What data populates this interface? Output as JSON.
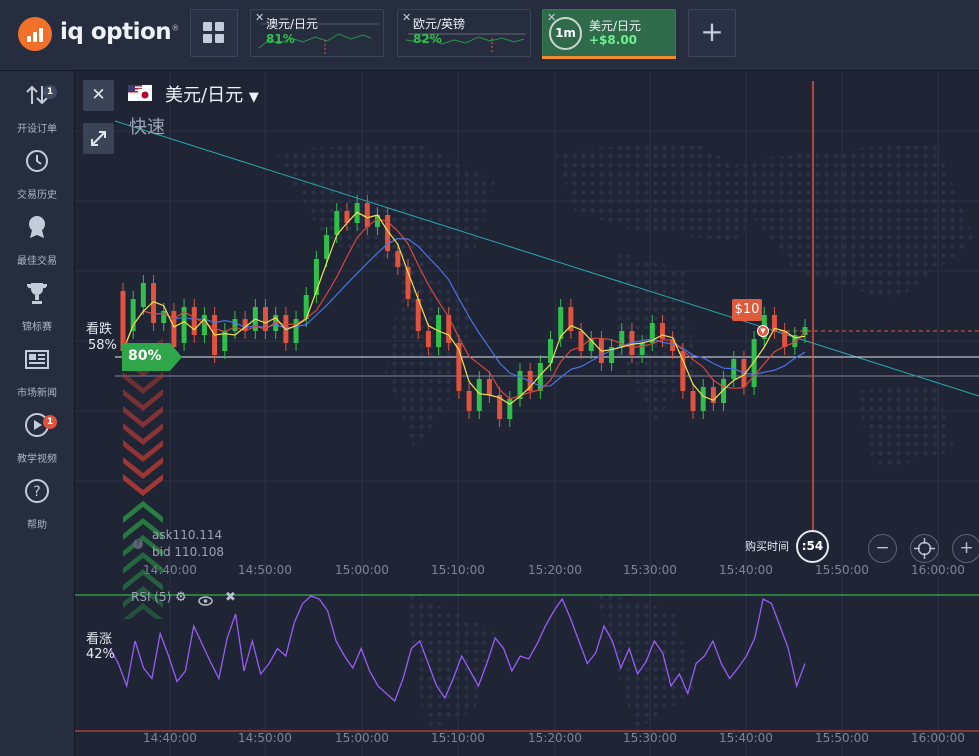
{
  "brand": {
    "name": "iq option",
    "trademark": "®",
    "color": "#f1702a"
  },
  "tabs": [
    {
      "name": "澳元/日元",
      "percent": "81%"
    },
    {
      "name": "欧元/英镑",
      "percent": "82%"
    },
    {
      "name": "美元/日元",
      "profit": "+$8.00",
      "timer": "1m",
      "active": true
    }
  ],
  "sidebar": {
    "items": [
      {
        "label": "开设订单",
        "icon": "arrows-updown-icon",
        "badge": "1"
      },
      {
        "label": "交易历史",
        "icon": "history-clock-icon"
      },
      {
        "label": "最佳交易",
        "icon": "medal-icon"
      },
      {
        "label": "锦标赛",
        "icon": "trophy-icon"
      },
      {
        "label": "市场新闻",
        "icon": "newspaper-icon"
      },
      {
        "label": "教学视频",
        "icon": "play-video-icon",
        "badge": "1"
      },
      {
        "label": "帮助",
        "icon": "help-question-icon"
      }
    ]
  },
  "asset": {
    "pair": "美元/日元",
    "mode": "快速"
  },
  "sentiment": {
    "down_label": "看跌",
    "down_pct": "58%",
    "up_label": "看涨",
    "up_pct": "42%"
  },
  "payout": "80%",
  "trade": {
    "amount": "$10",
    "buy_time_label": "购买时间",
    "countdown": ":54"
  },
  "quote": {
    "ask": "ask110.114",
    "bid": "bid 110.108"
  },
  "indicator": {
    "name": "RSI (5)"
  },
  "time_axis": [
    "14:40:00",
    "14:50:00",
    "15:00:00",
    "15:10:00",
    "15:20:00",
    "15:30:00",
    "15:40:00",
    "15:50:00",
    "16:00:00"
  ],
  "colors": {
    "up": "#2fbf4a",
    "down": "#e0533e",
    "accent": "#f28b2c",
    "rsi": "#9a5cf5",
    "ma_yellow": "#f2e14b",
    "ma_blue": "#4b73e8",
    "ma_red": "#d8463f",
    "trend": "#2aa6b0"
  },
  "chart_data": {
    "type": "candlestick",
    "x_labels": [
      "14:40:00",
      "14:50:00",
      "15:00:00",
      "15:10:00",
      "15:20:00",
      "15:30:00",
      "15:40:00",
      "15:50:00",
      "16:00:00"
    ],
    "rsi_ylim": [
      0,
      100
    ],
    "rsi": [
      55,
      45,
      30,
      60,
      42,
      35,
      65,
      50,
      33,
      40,
      70,
      58,
      46,
      35,
      62,
      78,
      40,
      60,
      38,
      45,
      55,
      50,
      72,
      85,
      90,
      88,
      80,
      60,
      50,
      42,
      55,
      40,
      30,
      25,
      20,
      35,
      55,
      60,
      45,
      30,
      22,
      35,
      50,
      40,
      30,
      45,
      62,
      55,
      40,
      50,
      48,
      58,
      70,
      80,
      88,
      75,
      60,
      45,
      52,
      70,
      60,
      42,
      55,
      38,
      46,
      60,
      52,
      30,
      38,
      25,
      45,
      50,
      60,
      45,
      35,
      42,
      50,
      62,
      88,
      85,
      70,
      55,
      30,
      45
    ],
    "candles": [
      [
        110.2,
        110.05
      ],
      [
        110.1,
        110.18
      ],
      [
        110.16,
        110.22
      ],
      [
        110.22,
        110.12
      ],
      [
        110.12,
        110.15
      ],
      [
        110.15,
        110.06
      ],
      [
        110.07,
        110.16
      ],
      [
        110.16,
        110.09
      ],
      [
        110.09,
        110.14
      ],
      [
        110.14,
        110.04
      ],
      [
        110.05,
        110.1
      ],
      [
        110.1,
        110.13
      ],
      [
        110.13,
        110.1
      ],
      [
        110.1,
        110.16
      ],
      [
        110.16,
        110.1
      ],
      [
        110.1,
        110.14
      ],
      [
        110.14,
        110.07
      ],
      [
        110.07,
        110.13
      ],
      [
        110.13,
        110.19
      ],
      [
        110.19,
        110.28
      ],
      [
        110.28,
        110.34
      ],
      [
        110.34,
        110.4
      ],
      [
        110.4,
        110.37
      ],
      [
        110.37,
        110.42
      ],
      [
        110.42,
        110.36
      ],
      [
        110.36,
        110.39
      ],
      [
        110.39,
        110.3
      ],
      [
        110.3,
        110.26
      ],
      [
        110.26,
        110.18
      ],
      [
        110.18,
        110.1
      ],
      [
        110.1,
        110.06
      ],
      [
        110.06,
        110.14
      ],
      [
        110.14,
        110.07
      ],
      [
        110.07,
        109.95
      ],
      [
        109.95,
        109.9
      ],
      [
        109.9,
        109.98
      ],
      [
        109.98,
        109.94
      ],
      [
        109.94,
        109.88
      ],
      [
        109.88,
        109.93
      ],
      [
        109.93,
        110.0
      ],
      [
        110.0,
        109.95
      ],
      [
        109.95,
        110.02
      ],
      [
        110.02,
        110.08
      ],
      [
        110.08,
        110.16
      ],
      [
        110.16,
        110.1
      ],
      [
        110.1,
        110.05
      ],
      [
        110.05,
        110.08
      ],
      [
        110.08,
        110.02
      ],
      [
        110.02,
        110.06
      ],
      [
        110.06,
        110.1
      ],
      [
        110.1,
        110.04
      ],
      [
        110.04,
        110.07
      ],
      [
        110.07,
        110.12
      ],
      [
        110.12,
        110.08
      ],
      [
        110.08,
        110.05
      ],
      [
        110.05,
        109.95
      ],
      [
        109.95,
        109.9
      ],
      [
        109.9,
        109.96
      ],
      [
        109.96,
        109.92
      ],
      [
        109.92,
        109.98
      ],
      [
        109.98,
        110.03
      ],
      [
        110.03,
        109.96
      ],
      [
        109.96,
        110.08
      ],
      [
        110.08,
        110.14
      ],
      [
        110.14,
        110.1
      ],
      [
        110.1,
        110.06
      ],
      [
        110.06,
        110.09
      ],
      [
        110.09,
        110.11
      ]
    ]
  }
}
